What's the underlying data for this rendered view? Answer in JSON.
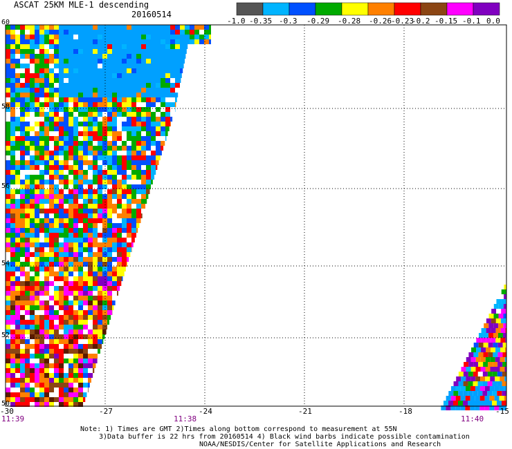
{
  "header": {
    "title": "ASCAT 25KM MLE-1 descending",
    "date": "20160514"
  },
  "colorbar": {
    "labels": [
      "-1.0",
      "-0.35",
      "-0.3",
      "-0.29",
      "-0.28",
      "-0.26",
      "-0.23",
      "-0.2",
      "-0.15",
      "-0.1",
      "0.0"
    ],
    "colors": [
      "#555555",
      "#00b4ff",
      "#0050ff",
      "#00aa00",
      "#ffff00",
      "#ff8000",
      "#ff0000",
      "#8b4513",
      "#ff00ff",
      "#8000c0"
    ]
  },
  "map": {
    "lat_labels": [
      "60",
      "58",
      "56",
      "54",
      "52",
      "50"
    ],
    "lon_labels": [
      "-30",
      "-27",
      "-24",
      "-21",
      "-18",
      "-15"
    ],
    "time_labels": [
      "11:39",
      "11:38",
      "11:40"
    ],
    "lat_range": [
      50,
      60
    ],
    "lon_range": [
      -30,
      -15
    ]
  },
  "notes": {
    "line1": "Note: 1) Times are GMT 2)Times along bottom correspond to measurement at 55N",
    "line2": "3)Data buffer is 22 hrs from 20160514 4) Black wind barbs indicate possible contamination",
    "line3": "NOAA/NESDIS/Center for Satellite Applications and Research"
  }
}
